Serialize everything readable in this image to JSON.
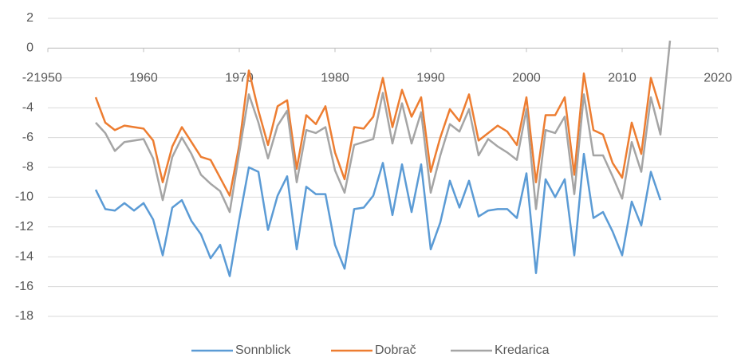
{
  "chart_data": {
    "type": "line",
    "x": [
      1955,
      1956,
      1957,
      1958,
      1959,
      1960,
      1961,
      1962,
      1963,
      1964,
      1965,
      1966,
      1967,
      1968,
      1969,
      1970,
      1971,
      1972,
      1973,
      1974,
      1975,
      1976,
      1977,
      1978,
      1979,
      1980,
      1981,
      1982,
      1983,
      1984,
      1985,
      1986,
      1987,
      1988,
      1989,
      1990,
      1991,
      1992,
      1993,
      1994,
      1995,
      1996,
      1997,
      1998,
      1999,
      2000,
      2001,
      2002,
      2003,
      2004,
      2005,
      2006,
      2007,
      2008,
      2009,
      2010,
      2011,
      2012,
      2013,
      2014,
      2015
    ],
    "series": [
      {
        "name": "Sonnblick",
        "color": "#5b9bd5",
        "values": [
          -9.5,
          -10.8,
          -10.9,
          -10.4,
          -10.9,
          -10.4,
          -11.5,
          -13.9,
          -10.7,
          -10.2,
          -11.6,
          -12.5,
          -14.1,
          -13.2,
          -15.3,
          -11.5,
          -8.0,
          -8.3,
          -12.2,
          -9.9,
          -8.6,
          -13.5,
          -9.3,
          -9.8,
          -9.8,
          -13.2,
          -14.8,
          -10.8,
          -10.7,
          -9.9,
          -7.7,
          -11.2,
          -7.8,
          -11.0,
          -7.8,
          -13.5,
          -11.7,
          -8.9,
          -10.7,
          -8.9,
          -11.3,
          -10.9,
          -10.8,
          -10.8,
          -11.4,
          -8.4,
          -15.1,
          -8.8,
          -10.0,
          -8.8,
          -13.9,
          -7.1,
          -11.4,
          -11.0,
          -12.3,
          -13.9,
          -10.3,
          -11.9,
          -8.3,
          -10.2,
          null
        ]
      },
      {
        "name": "Dobrač",
        "color": "#ed7d31",
        "values": [
          -3.3,
          -5.0,
          -5.5,
          -5.2,
          -5.3,
          -5.4,
          -6.2,
          -9.0,
          -6.6,
          -5.3,
          -6.3,
          -7.3,
          -7.5,
          -8.7,
          -9.9,
          -6.5,
          -1.5,
          -4.2,
          -6.5,
          -3.9,
          -3.5,
          -8.1,
          -4.5,
          -5.1,
          -3.9,
          -7.0,
          -8.8,
          -5.3,
          -5.4,
          -4.6,
          -2.0,
          -5.3,
          -2.8,
          -4.6,
          -3.3,
          -8.3,
          -6.0,
          -4.1,
          -4.9,
          -3.1,
          -6.2,
          -5.7,
          -5.2,
          -5.6,
          -6.5,
          -3.3,
          -9.0,
          -4.5,
          -4.5,
          -3.3,
          -8.5,
          -1.7,
          -5.5,
          -5.8,
          -7.7,
          -8.7,
          -5.0,
          -7.1,
          -2.0,
          -4.1,
          null
        ]
      },
      {
        "name": "Kredarica",
        "color": "#a5a5a5",
        "values": [
          -5.0,
          -5.7,
          -6.9,
          -6.3,
          -6.2,
          -6.1,
          -7.4,
          -10.2,
          -7.3,
          -6.0,
          -7.1,
          -8.5,
          -9.1,
          -9.6,
          -11.0,
          -7.0,
          -3.1,
          -5.0,
          -7.4,
          -5.2,
          -4.2,
          -9.0,
          -5.5,
          -5.7,
          -5.3,
          -8.2,
          -9.7,
          -6.5,
          -6.3,
          -6.1,
          -3.0,
          -6.4,
          -3.7,
          -6.4,
          -4.3,
          -9.7,
          -7.2,
          -5.1,
          -5.6,
          -4.1,
          -7.2,
          -6.1,
          -6.6,
          -7.0,
          -7.5,
          -4.1,
          -10.8,
          -5.5,
          -5.7,
          -4.6,
          -9.8,
          -3.1,
          -7.2,
          -7.2,
          -8.6,
          -10.1,
          -6.3,
          -8.3,
          -3.3,
          -5.8,
          0.5
        ]
      }
    ],
    "xlim": [
      1950,
      2020
    ],
    "xticks": [
      1950,
      1960,
      1970,
      1980,
      1990,
      2000,
      2010,
      2020
    ],
    "ylim": [
      -18,
      2
    ],
    "yticks": [
      -18,
      -16,
      -14,
      -12,
      -10,
      -8,
      -6,
      -4,
      -2,
      0,
      2
    ],
    "grid": true,
    "legend": "bottom"
  }
}
